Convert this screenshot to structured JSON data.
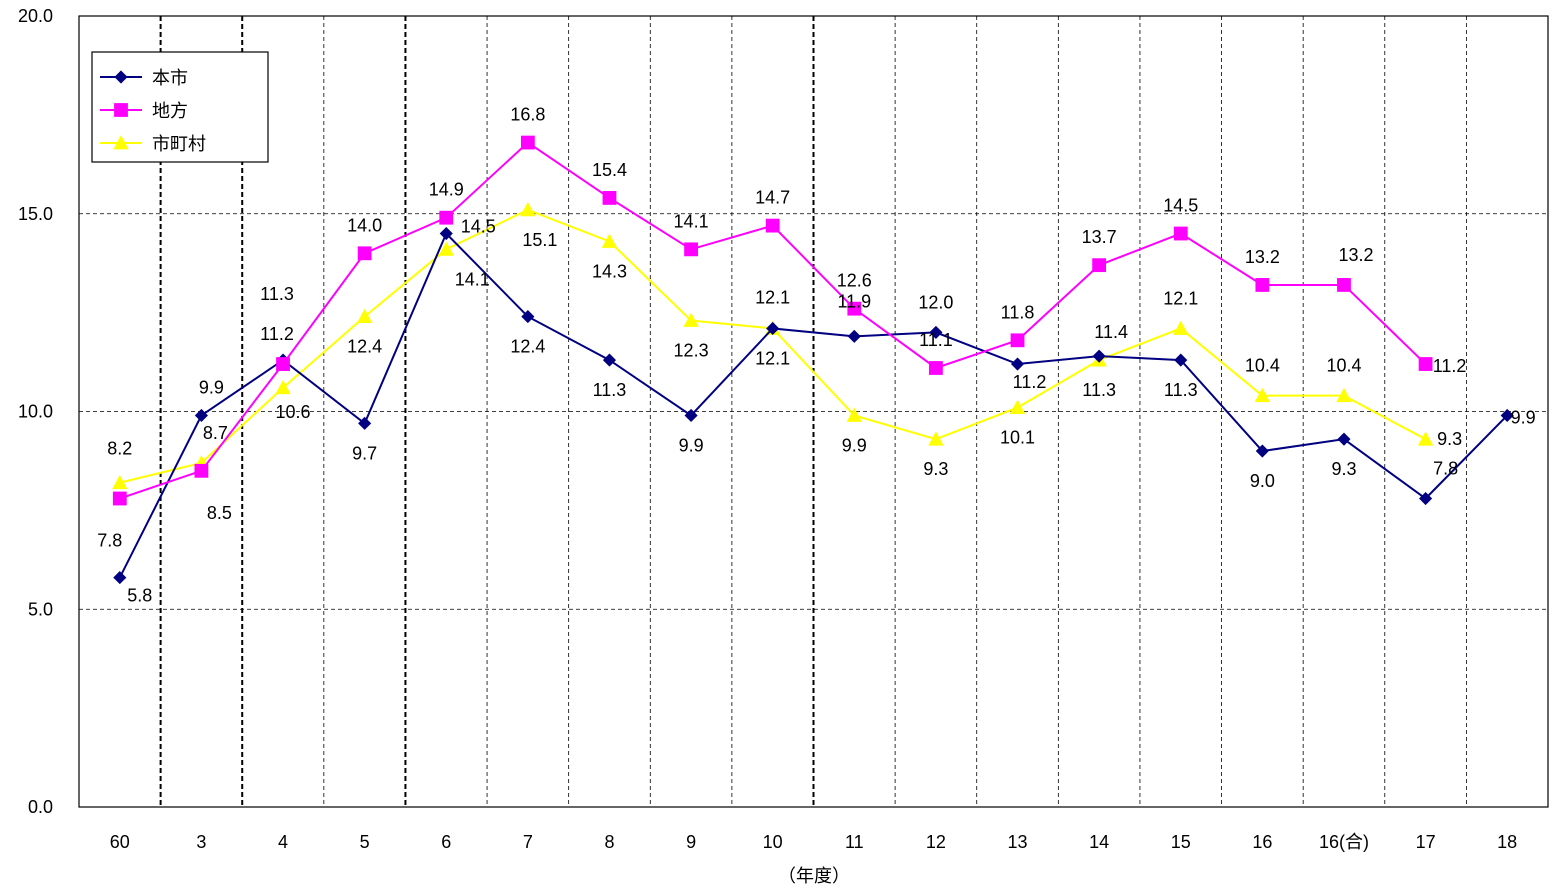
{
  "chart_data": {
    "type": "line",
    "categories": [
      "60",
      "3",
      "4",
      "5",
      "6",
      "7",
      "8",
      "9",
      "10",
      "11",
      "12",
      "13",
      "14",
      "15",
      "16",
      "16(合)",
      "17",
      "18"
    ],
    "series": [
      {
        "name": "本市",
        "color": "#000080",
        "marker": "diamond",
        "values": [
          5.8,
          9.9,
          11.3,
          9.7,
          14.5,
          12.4,
          11.3,
          9.9,
          12.1,
          11.9,
          12.0,
          11.2,
          11.4,
          11.3,
          9.0,
          9.3,
          7.8,
          9.9
        ],
        "labels": [
          "5.8",
          "9.9",
          "11.3",
          "9.7",
          "14.5",
          "12.4",
          "11.3",
          "9.9",
          "12.1",
          "11.9",
          "12.0",
          "11.2",
          "11.4",
          "11.3",
          "9.0",
          "9.3",
          "7.8",
          "9.9"
        ]
      },
      {
        "name": "地方",
        "color": "#FF00FF",
        "marker": "square",
        "values": [
          7.8,
          8.5,
          11.2,
          14.0,
          14.9,
          16.8,
          15.4,
          14.1,
          14.7,
          12.6,
          11.1,
          11.8,
          13.7,
          14.5,
          13.2,
          13.2,
          11.2,
          null
        ],
        "labels": [
          "7.8",
          "8.5",
          "11.2",
          "14.0",
          "14.9",
          "16.8",
          "15.4",
          "14.1",
          "14.7",
          "12.6",
          "11.1",
          "11.8",
          "13.7",
          "14.5",
          "13.2",
          "13.2",
          "11.2",
          null
        ]
      },
      {
        "name": "市町村",
        "color": "#FFFF00",
        "marker": "triangle",
        "values": [
          8.2,
          8.7,
          10.6,
          12.4,
          14.1,
          15.1,
          14.3,
          12.3,
          12.1,
          9.9,
          9.3,
          10.1,
          11.3,
          12.1,
          10.4,
          10.4,
          9.3,
          null
        ],
        "labels": [
          "8.2",
          "8.7",
          "10.6",
          "12.4",
          "14.1",
          "15.1",
          "14.3",
          "12.3",
          "12.1",
          "9.9",
          "9.3",
          "10.1",
          "11.3",
          "12.1",
          "10.4",
          "10.4",
          "9.3",
          null
        ]
      }
    ],
    "yticks": [
      "0.0",
      "5.0",
      "10.0",
      "15.0",
      "20.0"
    ],
    "ylim": [
      0,
      20
    ],
    "xlabel": "（年度）",
    "ylabel": "",
    "title": "",
    "grid": true,
    "legend_position": "top-left"
  }
}
